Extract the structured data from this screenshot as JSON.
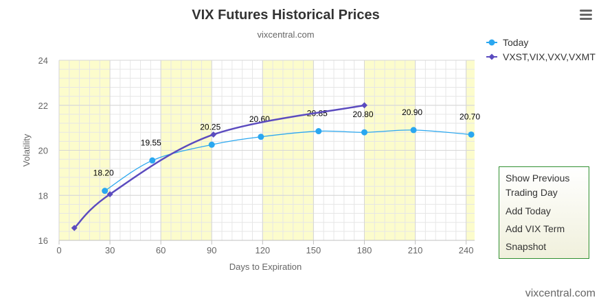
{
  "chart_data": {
    "type": "line",
    "title": "VIX Futures Historical Prices",
    "subtitle": "vixcentral.com",
    "xlabel": "Days to Expiration",
    "ylabel": "Volatility",
    "xlim": [
      0,
      245
    ],
    "ylim": [
      16,
      24
    ],
    "x_ticks": [
      "0",
      "30",
      "60",
      "90",
      "120",
      "150",
      "180",
      "210",
      "240"
    ],
    "y_ticks": [
      "16",
      "18",
      "20",
      "22",
      "24"
    ],
    "legend_position": "top-right",
    "bands": [
      [
        0,
        30
      ],
      [
        60,
        90
      ],
      [
        120,
        150
      ],
      [
        180,
        210
      ],
      [
        240,
        245
      ]
    ],
    "grid": true,
    "series": [
      {
        "name": "Today",
        "color": "#2aa7f0",
        "marker": "circle",
        "x": [
          27,
          55,
          90,
          119,
          153,
          180,
          209,
          243
        ],
        "y": [
          18.2,
          19.55,
          20.25,
          20.6,
          20.85,
          20.8,
          20.9,
          20.7
        ],
        "labels": [
          "18.20",
          "19.55",
          "20.25",
          "20.60",
          "20.85",
          "20.80",
          "20.90",
          "20.70"
        ]
      },
      {
        "name": "VXST,VIX,VXV,VXMT",
        "color": "#5b4bbf",
        "marker": "diamond",
        "x": [
          9,
          30,
          91,
          180
        ],
        "y": [
          16.55,
          18.05,
          20.7,
          22.0
        ],
        "labels": []
      }
    ]
  },
  "menu": {
    "items": [
      "Show Previous Trading Day",
      "Add Today",
      "Add VIX Term",
      "Snapshot"
    ]
  },
  "credit": "vixcentral.com",
  "colors": {
    "band": "#fcfccc",
    "grid": "#e6e6e6",
    "axis_text": "#666666"
  }
}
